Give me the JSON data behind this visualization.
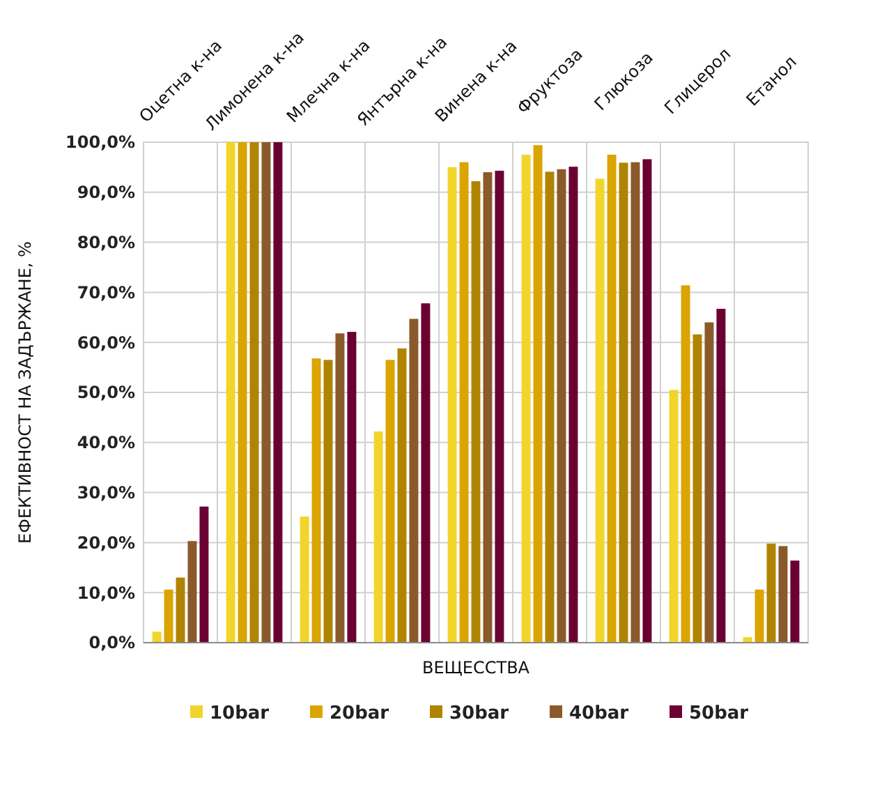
{
  "chart_data": {
    "type": "bar",
    "xlabel": "ВЕЩЕССТВА",
    "ylabel": "ЕФЕКТИВНОСТ НА ЗАДЪРЖАНЕ, %",
    "categories": [
      "Оцетна к-на",
      "Лимонена к-на",
      "Млечна к-на",
      "Янтърна к-на",
      "Винена к-на",
      "Фруктоза",
      "Глюкоза",
      "Глицерол",
      "Етанол"
    ],
    "series": [
      {
        "name": "10bar",
        "color": "#f2d52b",
        "values": [
          2.2,
          100,
          25.2,
          42.2,
          95,
          97.5,
          92.7,
          50.5,
          1.1
        ]
      },
      {
        "name": "20bar",
        "color": "#dba400",
        "values": [
          10.6,
          100,
          56.8,
          56.5,
          96,
          99.4,
          97.5,
          71.4,
          10.6
        ]
      },
      {
        "name": "30bar",
        "color": "#b08400",
        "values": [
          13,
          100,
          56.5,
          58.8,
          92.2,
          94.1,
          95.9,
          61.6,
          19.8
        ]
      },
      {
        "name": "40bar",
        "color": "#8b5a2b",
        "values": [
          20.3,
          100,
          61.8,
          64.7,
          94,
          94.6,
          96,
          64,
          19.3
        ]
      },
      {
        "name": "50bar",
        "color": "#6b0033",
        "values": [
          27.2,
          100,
          62.1,
          67.8,
          94.3,
          95.1,
          96.6,
          66.7,
          16.4
        ]
      }
    ],
    "ylim": [
      0,
      100
    ],
    "yticks": [
      {
        "value": 0,
        "label": "0,0%"
      },
      {
        "value": 10,
        "label": "10,0%"
      },
      {
        "value": 20,
        "label": "20,0%"
      },
      {
        "value": 30,
        "label": "30,0%"
      },
      {
        "value": 40,
        "label": "40,0%"
      },
      {
        "value": 50,
        "label": "50,0%"
      },
      {
        "value": 60,
        "label": "60,0%"
      },
      {
        "value": 70,
        "label": "70,0%"
      },
      {
        "value": 80,
        "label": "80,0%"
      },
      {
        "value": 90,
        "label": "90,0%"
      },
      {
        "value": 100,
        "label": "100,0%"
      }
    ],
    "grid": true,
    "legend": "bottom"
  }
}
